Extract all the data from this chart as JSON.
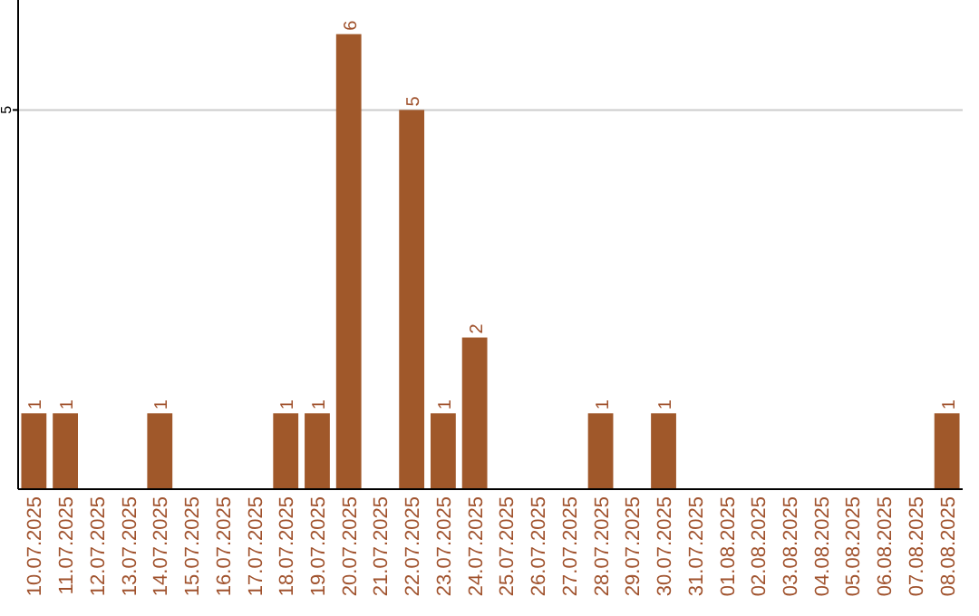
{
  "chart_data": {
    "type": "bar",
    "categories": [
      "10.07.2025",
      "11.07.2025",
      "12.07.2025",
      "13.07.2025",
      "14.07.2025",
      "15.07.2025",
      "16.07.2025",
      "17.07.2025",
      "18.07.2025",
      "19.07.2025",
      "20.07.2025",
      "21.07.2025",
      "22.07.2025",
      "23.07.2025",
      "24.07.2025",
      "25.07.2025",
      "26.07.2025",
      "27.07.2025",
      "28.07.2025",
      "29.07.2025",
      "30.07.2025",
      "31.07.2025",
      "01.08.2025",
      "02.08.2025",
      "03.08.2025",
      "04.08.2025",
      "05.08.2025",
      "06.08.2025",
      "07.08.2025",
      "08.08.2025"
    ],
    "values": [
      1,
      1,
      0,
      0,
      1,
      0,
      0,
      0,
      1,
      1,
      6,
      0,
      5,
      1,
      2,
      0,
      0,
      0,
      1,
      0,
      1,
      0,
      0,
      0,
      0,
      0,
      0,
      0,
      0,
      1
    ],
    "value_labels": [
      "1",
      "1",
      null,
      null,
      "1",
      null,
      null,
      null,
      "1",
      "1",
      "6",
      null,
      "5",
      "1",
      "2",
      null,
      null,
      null,
      "1",
      null,
      "1",
      null,
      null,
      null,
      null,
      null,
      null,
      null,
      null,
      "1"
    ],
    "color": "#a0582a",
    "ylim": [
      0,
      6.45
    ],
    "yticks": [
      5
    ],
    "grid": "y"
  }
}
